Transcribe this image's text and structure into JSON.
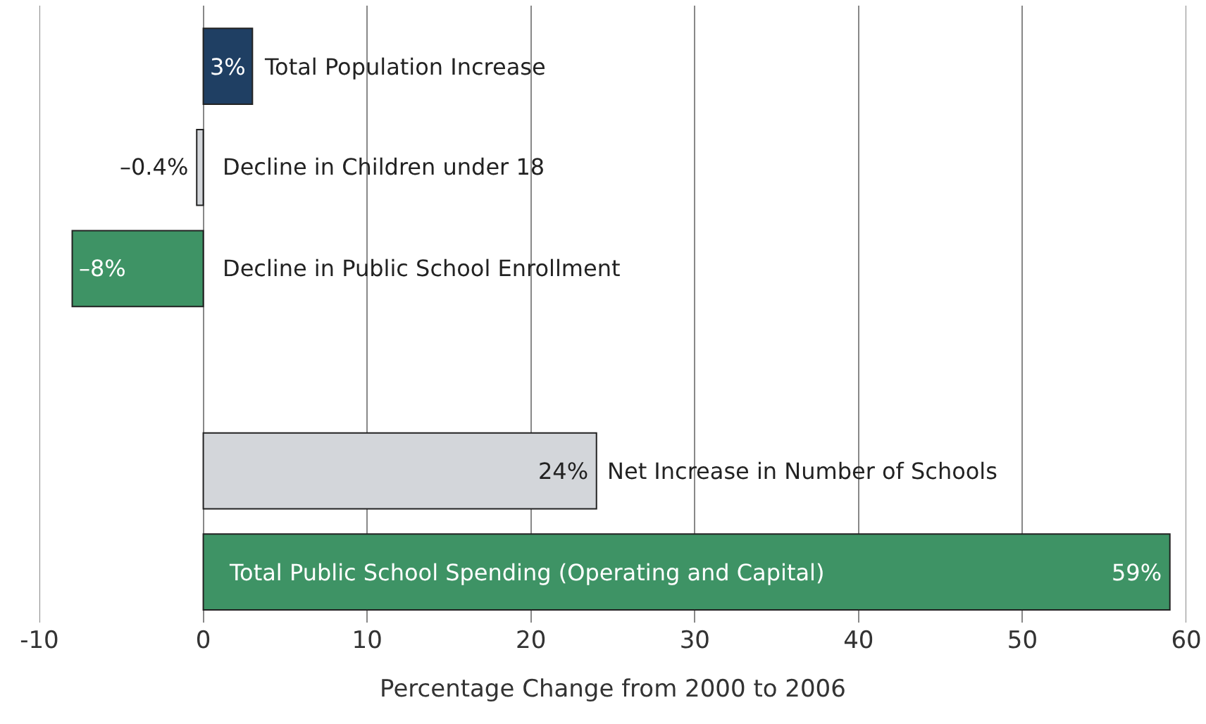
{
  "chart_data": {
    "type": "bar",
    "orientation": "horizontal",
    "categories": [
      "Total Population Increase",
      "Decline in Children under 18",
      "Decline in Public School Enrollment",
      null,
      "Net Increase in Number of Schools",
      "Total Public School Spending (Operating and Capital)"
    ],
    "values": [
      3,
      -0.4,
      -8,
      null,
      24,
      59
    ],
    "colors": [
      "#1f3f63",
      "#d3d6da",
      "#3e9365",
      "#ffffff",
      "#d3d6da",
      "#3e9365"
    ],
    "value_labels": [
      "3%",
      "–0.4%",
      "–8%",
      null,
      "24%",
      "59%"
    ],
    "xlabel": "Percentage Change from 2000 to 2006",
    "xlim": [
      -10,
      60
    ],
    "xticks": [
      -10,
      0,
      10,
      20,
      30,
      40,
      50,
      60
    ],
    "grid": "x",
    "tick_labels": "x"
  }
}
